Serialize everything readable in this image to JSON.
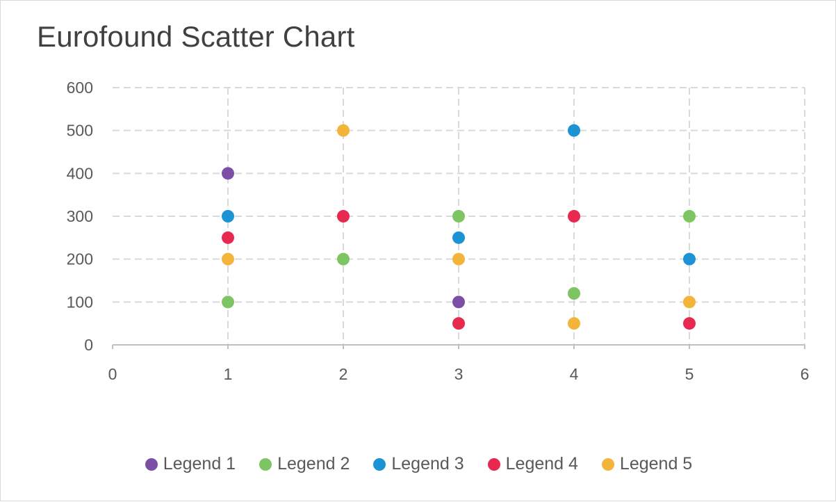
{
  "chart_data": {
    "type": "scatter",
    "title": "Eurofound Scatter Chart",
    "xlabel": "",
    "ylabel": "",
    "xlim": [
      0,
      6
    ],
    "ylim": [
      0,
      600
    ],
    "xticks": [
      0,
      1,
      2,
      3,
      4,
      5,
      6
    ],
    "yticks": [
      0,
      100,
      200,
      300,
      400,
      500,
      600
    ],
    "grid": true,
    "legend_position": "bottom",
    "series": [
      {
        "name": "Legend 1",
        "color": "#7b4fa6",
        "points": [
          [
            1,
            400
          ],
          [
            3,
            100
          ]
        ]
      },
      {
        "name": "Legend 2",
        "color": "#7dc462",
        "points": [
          [
            1,
            100
          ],
          [
            2,
            200
          ],
          [
            3,
            300
          ],
          [
            4,
            120
          ],
          [
            5,
            300
          ]
        ]
      },
      {
        "name": "Legend 3",
        "color": "#1c93d4",
        "points": [
          [
            1,
            300
          ],
          [
            3,
            250
          ],
          [
            4,
            500
          ],
          [
            5,
            200
          ]
        ]
      },
      {
        "name": "Legend 4",
        "color": "#e8294f",
        "points": [
          [
            1,
            250
          ],
          [
            2,
            300
          ],
          [
            3,
            50
          ],
          [
            4,
            300
          ],
          [
            5,
            50
          ]
        ]
      },
      {
        "name": "Legend 5",
        "color": "#f2b43a",
        "points": [
          [
            1,
            200
          ],
          [
            2,
            500
          ],
          [
            3,
            200
          ],
          [
            4,
            50
          ],
          [
            5,
            100
          ]
        ]
      }
    ]
  }
}
